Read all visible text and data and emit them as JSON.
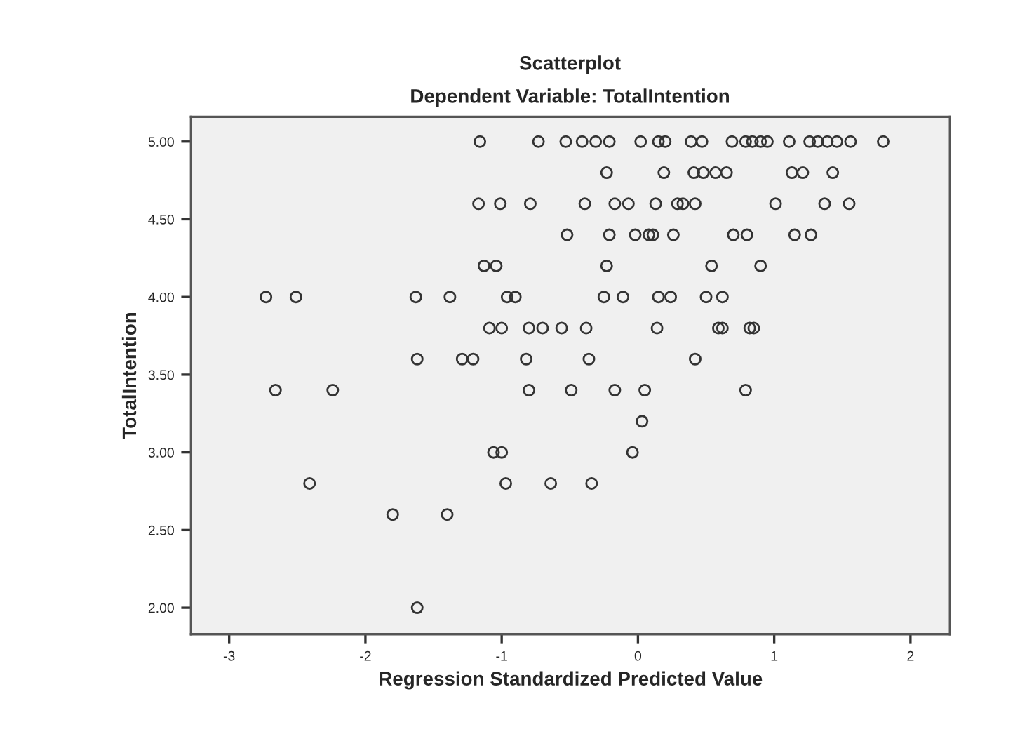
{
  "chart_data": {
    "type": "scatter",
    "title": "Scatterplot",
    "subtitle": "Dependent Variable: TotalIntention",
    "xlabel": "Regression Standardized Predicted Value",
    "ylabel": "TotalIntention",
    "series": [
      {
        "color": "#333333",
        "x": [
          -1.16,
          -0.73,
          -0.53,
          -0.41,
          -0.31,
          -0.21,
          0.02,
          0.15,
          0.2,
          0.39,
          0.47,
          0.69,
          0.79,
          0.84,
          0.9,
          0.95,
          1.11,
          1.26,
          1.32,
          1.39,
          1.46,
          1.56,
          1.8,
          -0.23,
          0.19,
          0.41,
          0.48,
          0.57,
          0.65,
          1.13,
          1.21,
          1.43,
          -1.17,
          -1.01,
          -0.79,
          -0.39,
          -0.17,
          -0.07,
          0.13,
          0.29,
          0.33,
          0.42,
          1.01,
          1.37,
          1.55,
          -0.52,
          -0.21,
          -0.02,
          0.08,
          0.11,
          0.26,
          0.7,
          0.8,
          1.15,
          1.27,
          -1.13,
          -1.04,
          -0.23,
          0.54,
          0.9,
          -2.73,
          -2.51,
          -1.63,
          -1.38,
          -0.96,
          -0.9,
          -0.25,
          -0.11,
          0.15,
          0.24,
          0.5,
          0.62,
          -1.09,
          -1.0,
          -0.8,
          -0.7,
          -0.56,
          -0.38,
          0.14,
          0.59,
          0.62,
          0.82,
          0.85,
          -1.62,
          -1.29,
          -1.21,
          -0.82,
          -0.36,
          0.42,
          -2.66,
          -2.24,
          -0.8,
          -0.49,
          -0.17,
          0.05,
          0.79,
          0.03,
          -1.06,
          -1.0,
          -0.04,
          -2.41,
          -0.97,
          -0.64,
          -0.34,
          -1.8,
          -1.4,
          -1.62
        ],
        "values": [
          5,
          5,
          5,
          5,
          5,
          5,
          5,
          5,
          5,
          5,
          5,
          5,
          5,
          5,
          5,
          5,
          5,
          5,
          5,
          5,
          5,
          5,
          5,
          4.8,
          4.8,
          4.8,
          4.8,
          4.8,
          4.8,
          4.8,
          4.8,
          4.8,
          4.6,
          4.6,
          4.6,
          4.6,
          4.6,
          4.6,
          4.6,
          4.6,
          4.6,
          4.6,
          4.6,
          4.6,
          4.6,
          4.4,
          4.4,
          4.4,
          4.4,
          4.4,
          4.4,
          4.4,
          4.4,
          4.4,
          4.4,
          4.2,
          4.2,
          4.2,
          4.2,
          4.2,
          4,
          4,
          4,
          4,
          4,
          4,
          4,
          4,
          4,
          4,
          4,
          4,
          3.8,
          3.8,
          3.8,
          3.8,
          3.8,
          3.8,
          3.8,
          3.8,
          3.8,
          3.8,
          3.8,
          3.6,
          3.6,
          3.6,
          3.6,
          3.6,
          3.6,
          3.4,
          3.4,
          3.4,
          3.4,
          3.4,
          3.4,
          3.4,
          3.2,
          3,
          3,
          3,
          2.8,
          2.8,
          2.8,
          2.8,
          2.6,
          2.6,
          2
        ]
      }
    ],
    "xlim": [
      -3.28,
      2.29
    ],
    "xticks": [
      -3,
      -2,
      -1,
      0,
      1,
      2
    ],
    "ylim": [
      1.83,
      5.16
    ],
    "yticks": [
      {
        "value": 2,
        "label": "2.00"
      },
      {
        "value": 2.5,
        "label": "2.50"
      },
      {
        "value": 3,
        "label": "3.00"
      },
      {
        "value": 3.5,
        "label": "3.50"
      },
      {
        "value": 4,
        "label": "4.00"
      },
      {
        "value": 4.5,
        "label": "4.50"
      },
      {
        "value": 5,
        "label": "5.00"
      }
    ],
    "marker": "circle",
    "grid": false,
    "legend": false
  }
}
